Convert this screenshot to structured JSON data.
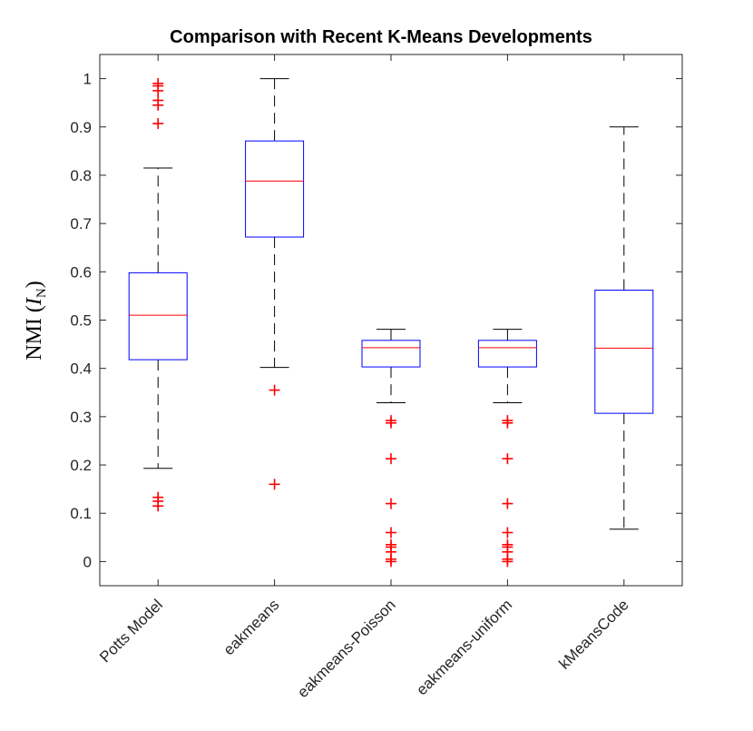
{
  "chart_data": {
    "type": "box",
    "title": "Comparison with Recent K-Means Developments",
    "ylabel": {
      "main": "NMI (",
      "italic": "I",
      "subscript": "N",
      "close": ")"
    },
    "xlabel": "",
    "ylim": [
      -0.05,
      1.05
    ],
    "yticks": [
      0,
      0.1,
      0.2,
      0.3,
      0.4,
      0.5,
      0.6,
      0.7,
      0.8,
      0.9,
      1
    ],
    "ytick_labels": [
      "0",
      "0.1",
      "0.2",
      "0.3",
      "0.4",
      "0.5",
      "0.6",
      "0.7",
      "0.8",
      "0.9",
      "1"
    ],
    "categories": [
      "Potts Model",
      "eakmeans",
      "eakmeans-Poisson",
      "eakmeans-uniform",
      "kMeansCode"
    ],
    "boxes": [
      {
        "name": "Potts Model",
        "whisker_low": 0.193,
        "q1": 0.418,
        "median": 0.51,
        "q3": 0.598,
        "whisker_high": 0.815,
        "outliers": [
          0.115,
          0.125,
          0.133,
          0.907,
          0.945,
          0.955,
          0.975,
          0.985,
          0.99
        ]
      },
      {
        "name": "eakmeans",
        "whisker_low": 0.402,
        "q1": 0.672,
        "median": 0.788,
        "q3": 0.871,
        "whisker_high": 1.0,
        "outliers": [
          0.16,
          0.355
        ]
      },
      {
        "name": "eakmeans-Poisson",
        "whisker_low": 0.329,
        "q1": 0.403,
        "median": 0.443,
        "q3": 0.458,
        "whisker_high": 0.481,
        "outliers": [
          0.0,
          0.005,
          0.02,
          0.03,
          0.035,
          0.06,
          0.12,
          0.213,
          0.287,
          0.292
        ]
      },
      {
        "name": "eakmeans-uniform",
        "whisker_low": 0.329,
        "q1": 0.403,
        "median": 0.443,
        "q3": 0.458,
        "whisker_high": 0.481,
        "outliers": [
          0.0,
          0.005,
          0.02,
          0.03,
          0.035,
          0.06,
          0.12,
          0.213,
          0.287,
          0.292
        ]
      },
      {
        "name": "kMeansCode",
        "whisker_low": 0.067,
        "q1": 0.307,
        "median": 0.442,
        "q3": 0.562,
        "whisker_high": 0.9,
        "outliers": []
      }
    ],
    "colors": {
      "box": "#0000ff",
      "median": "#ff0000",
      "whisker": "#000000",
      "outlier": "#ff0000",
      "axis": "#262626"
    },
    "grid": false,
    "legend": "none"
  }
}
